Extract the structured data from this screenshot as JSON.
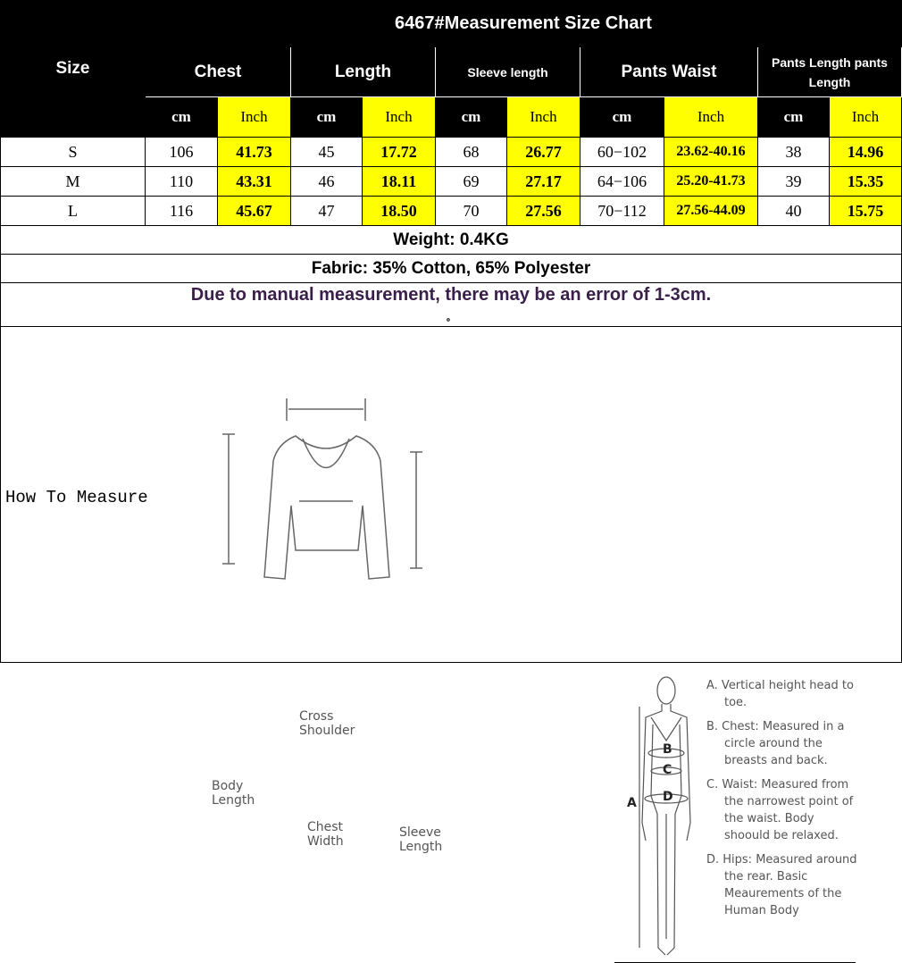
{
  "title": "6467#Measurement Size Chart",
  "headers": {
    "size": "Size",
    "chest": "Chest",
    "length": "Length",
    "sleeve": "Sleeve length",
    "waist": "Pants Waist",
    "pants_length": "Pants  Length pants Length"
  },
  "units": {
    "cm": "cm",
    "inch": "Inch"
  },
  "rows": [
    {
      "size": "S",
      "chest_cm": "106",
      "chest_in": "41.73",
      "len_cm": "45",
      "len_in": "17.72",
      "sl_cm": "68",
      "sl_in": "26.77",
      "w_cm": "60−102",
      "w_in": "23.62-40.16",
      "pl_cm": "38",
      "pl_in": "14.96"
    },
    {
      "size": "M",
      "chest_cm": "110",
      "chest_in": "43.31",
      "len_cm": "46",
      "len_in": "18.11",
      "sl_cm": "69",
      "sl_in": "27.17",
      "w_cm": "64−106",
      "w_in": "25.20-41.73",
      "pl_cm": "39",
      "pl_in": "15.35"
    },
    {
      "size": "L",
      "chest_cm": "116",
      "chest_in": "45.67",
      "len_cm": "47",
      "len_in": "18.50",
      "sl_cm": "70",
      "sl_in": "27.56",
      "w_cm": "70−112",
      "w_in": "27.56-44.09",
      "pl_cm": "40",
      "pl_in": "15.75"
    }
  ],
  "weight": "Weight: 0.4KG",
  "fabric": "Fabric: 35% Cotton, 65% Polyester",
  "note": "Due to manual measurement, there may be an error of 1-3cm.",
  "note_mark": "。",
  "how_to_measure": "How To Measure",
  "garment_labels": {
    "cross_shoulder": "Cross Shoulder",
    "body_length": "Body Length",
    "chest_width": "Chest Width",
    "sleeve_length": "Sleeve Length"
  },
  "body_labels": {
    "a": "A",
    "b": "B",
    "c": "C",
    "d": "D"
  },
  "body_notes": [
    "A. Vertical height head to toe.",
    "B. Chest: Measured in a circle around the breasts and back.",
    "C. Waist: Measured from the narrowest point of the waist. Body shoould be relaxed.",
    "D. Hips: Measured around the rear. Basic Meaurements of the Human Body"
  ],
  "colors": {
    "header_bg": "#000000",
    "inch_highlight": "#ffff00",
    "note_text": "#3a1f4a"
  }
}
